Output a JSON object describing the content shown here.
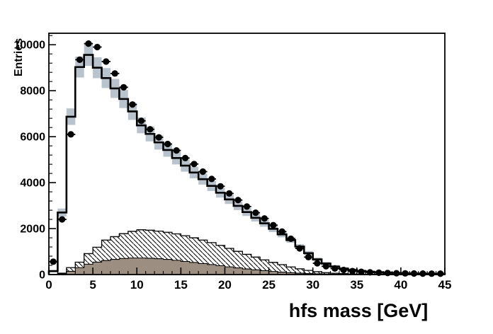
{
  "figure": {
    "background": "#ffffff",
    "xlabel": "hfs mass [GeV]",
    "ylabel": "Entries"
  },
  "colors": {
    "frame": "#000000",
    "mc_line": "#000000",
    "mc_fill": "#ffffff",
    "uncertainty_band": "#b8c3cd",
    "hatched_fill": "#ffffff",
    "hatched_line": "#000000",
    "solid_background": "#9c8f82",
    "solid_background_line": "#000000",
    "data_marker": "#000000"
  },
  "chart_data": {
    "type": "bar",
    "subtype": "overlaid-histograms-with-data-points",
    "xlabel": "hfs mass [GeV]",
    "ylabel": "Entries",
    "xlim": [
      0,
      45
    ],
    "ylim": [
      0,
      10500
    ],
    "bin_width": 1,
    "x_major_ticks": [
      0,
      5,
      10,
      15,
      20,
      25,
      30,
      35,
      40,
      45
    ],
    "x_minor_step": 1,
    "y_major_ticks": [
      0,
      2000,
      4000,
      6000,
      8000,
      10000
    ],
    "y_minor_step": 400,
    "grid": false,
    "legend": "none",
    "series": [
      {
        "name": "total-mc",
        "style": "step-histogram-filled",
        "values": [
          150,
          2700,
          6870,
          9030,
          9560,
          9000,
          8550,
          8100,
          7640,
          7100,
          6490,
          6120,
          5750,
          5420,
          5070,
          4740,
          4440,
          4150,
          3860,
          3560,
          3270,
          2990,
          2720,
          2470,
          2230,
          1990,
          1750,
          1500,
          1220,
          930,
          660,
          480,
          350,
          260,
          200,
          155,
          122,
          98,
          80,
          66,
          55,
          47,
          41,
          36,
          32
        ]
      },
      {
        "name": "mc-uncertainty-band",
        "style": "band-around-total-mc",
        "rel_halfwidth": 0.045,
        "abs_halfwidth": 50
      },
      {
        "name": "background-hatched",
        "style": "step-histogram-hatched",
        "values": [
          0,
          60,
          300,
          540,
          910,
          1190,
          1500,
          1650,
          1780,
          1880,
          1950,
          1930,
          1890,
          1840,
          1770,
          1690,
          1600,
          1500,
          1390,
          1270,
          1140,
          1010,
          880,
          760,
          640,
          530,
          430,
          330,
          250,
          180,
          125,
          85,
          58,
          40,
          28,
          20,
          14,
          10,
          7,
          5,
          4,
          3,
          2,
          2,
          1
        ]
      },
      {
        "name": "background-solid",
        "style": "step-histogram-solid",
        "values": [
          0,
          30,
          140,
          300,
          450,
          540,
          610,
          660,
          700,
          720,
          720,
          710,
          690,
          660,
          620,
          570,
          525,
          480,
          435,
          385,
          335,
          290,
          245,
          205,
          170,
          135,
          105,
          80,
          60,
          45,
          33,
          24,
          17,
          12,
          9,
          7,
          5,
          4,
          3,
          3,
          2,
          2,
          1,
          1,
          1
        ]
      },
      {
        "name": "data-points",
        "style": "points-filled-circle-with-x-errors",
        "values": [
          560,
          2400,
          6100,
          9350,
          10050,
          9900,
          9270,
          8750,
          8150,
          7400,
          6690,
          6320,
          5970,
          5680,
          5400,
          5070,
          4810,
          4480,
          4160,
          3840,
          3530,
          3240,
          2960,
          2690,
          2440,
          2150,
          1870,
          1560,
          1140,
          760,
          490,
          360,
          265,
          200,
          152,
          120,
          96,
          80,
          68,
          58,
          52,
          47,
          43,
          40,
          38
        ]
      }
    ]
  }
}
